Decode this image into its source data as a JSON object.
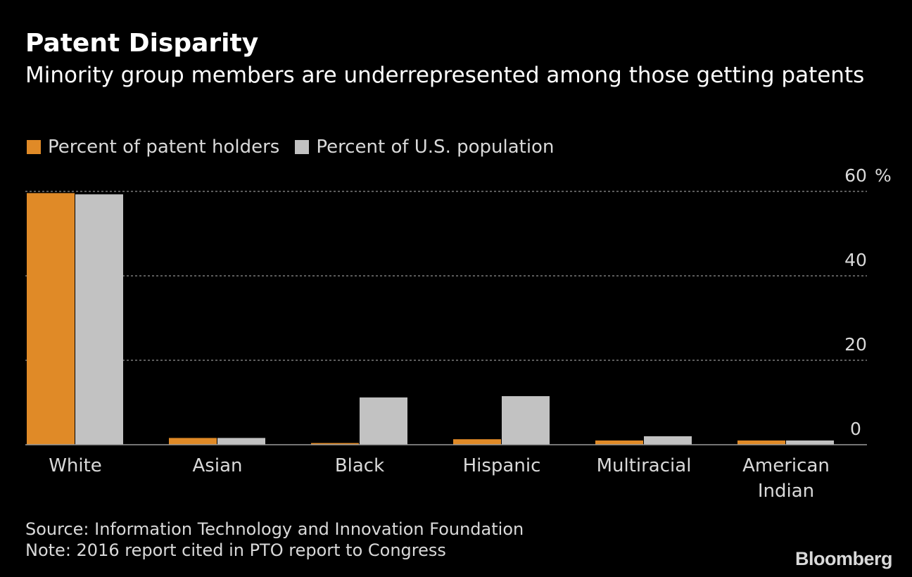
{
  "title": "Patent Disparity",
  "subtitle": "Minority group members are underrepresented among those getting patents",
  "colors": {
    "background": "#000000",
    "patent_holders": "#e08a27",
    "population": "#c2c2c2",
    "grid": "#7a7a7a",
    "text": "#ffffff",
    "muted_text": "#d9d9d9"
  },
  "chart_data": {
    "type": "bar",
    "title": "Patent Disparity",
    "subtitle": "Minority group members are underrepresented among those getting patents",
    "categories": [
      "White",
      "Asian",
      "Black",
      "Hispanic",
      "Multiracial",
      "American Indian"
    ],
    "category_lines": [
      [
        "White"
      ],
      [
        "Asian"
      ],
      [
        "Black"
      ],
      [
        "Hispanic"
      ],
      [
        "Multiracial"
      ],
      [
        "American",
        "Indian"
      ]
    ],
    "series": [
      {
        "name": "Percent of patent holders",
        "values": [
          59.6,
          1.6,
          0.4,
          1.3,
          1.0,
          1.0
        ],
        "color": "#e08a27"
      },
      {
        "name": "Percent of U.S. population",
        "values": [
          59.3,
          1.6,
          11.2,
          11.5,
          2.0,
          1.0
        ],
        "color": "#c2c2c2"
      }
    ],
    "ylim": [
      0,
      60
    ],
    "yticks": [
      0,
      20,
      40,
      60
    ],
    "ytick_labels": [
      "0",
      "20",
      "40",
      "60"
    ],
    "yunit": "%",
    "xlabel": "",
    "ylabel": "",
    "grid": true,
    "legend_position": "top-left"
  },
  "footer": {
    "source": "Source: Information Technology and Innovation Foundation",
    "note": "Note: 2016 report cited in PTO report to Congress"
  },
  "brand": "Bloomberg"
}
